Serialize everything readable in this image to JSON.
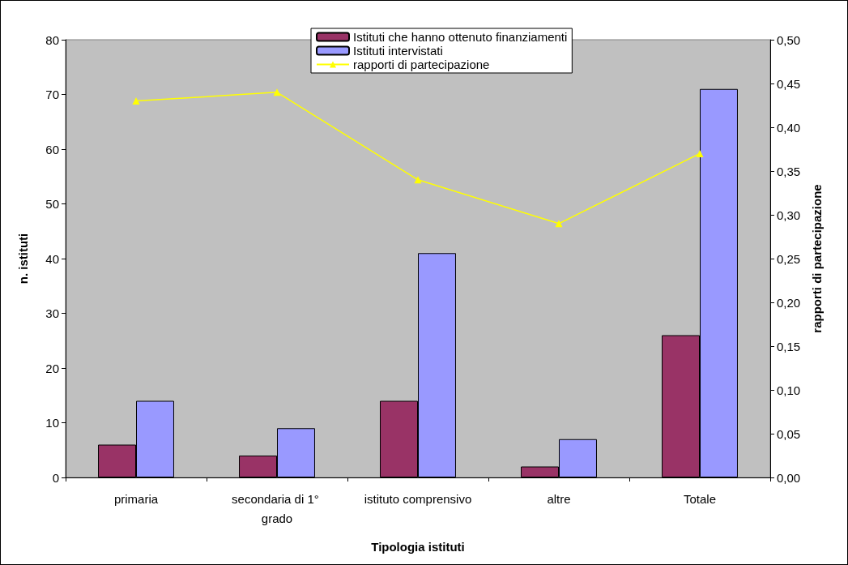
{
  "chart_data": {
    "type": "bar",
    "xlabel": "Tipologia istituti",
    "ylabel": "n. istituti",
    "y2label": "rapporti di partecipazione",
    "categories": [
      "primaria",
      "secondaria di 1° grado",
      "istituto comprensivo",
      "altre",
      "Totale"
    ],
    "series": [
      {
        "name": "Istituti che hanno ottenuto finanziamenti",
        "color": "#993366",
        "values": [
          6,
          4,
          14,
          2,
          26
        ]
      },
      {
        "name": "Istituti intervistati",
        "color": "#9999ff",
        "values": [
          14,
          9,
          41,
          7,
          71
        ]
      },
      {
        "name": "rapporti di partecipazione",
        "type": "line",
        "axis": "y2",
        "color": "#ffff00",
        "marker": "triangle",
        "values": [
          0.43,
          0.44,
          0.34,
          0.29,
          0.37
        ]
      }
    ],
    "ylim": [
      0,
      80
    ],
    "yticks": [
      0,
      10,
      20,
      30,
      40,
      50,
      60,
      70,
      80
    ],
    "y2lim": [
      0,
      0.5
    ],
    "y2ticks": [
      {
        "value": 0,
        "label": "0,00"
      },
      {
        "value": 0.05,
        "label": "0,05"
      },
      {
        "value": 0.1,
        "label": "0,10"
      },
      {
        "value": 0.15,
        "label": "0,15"
      },
      {
        "value": 0.2,
        "label": "0,20"
      },
      {
        "value": 0.25,
        "label": "0,25"
      },
      {
        "value": 0.3,
        "label": "0,30"
      },
      {
        "value": 0.35,
        "label": "0,35"
      },
      {
        "value": 0.4,
        "label": "0,40"
      },
      {
        "value": 0.45,
        "label": "0,45"
      },
      {
        "value": 0.5,
        "label": "0,50"
      }
    ],
    "grid": false,
    "legend": "top"
  }
}
